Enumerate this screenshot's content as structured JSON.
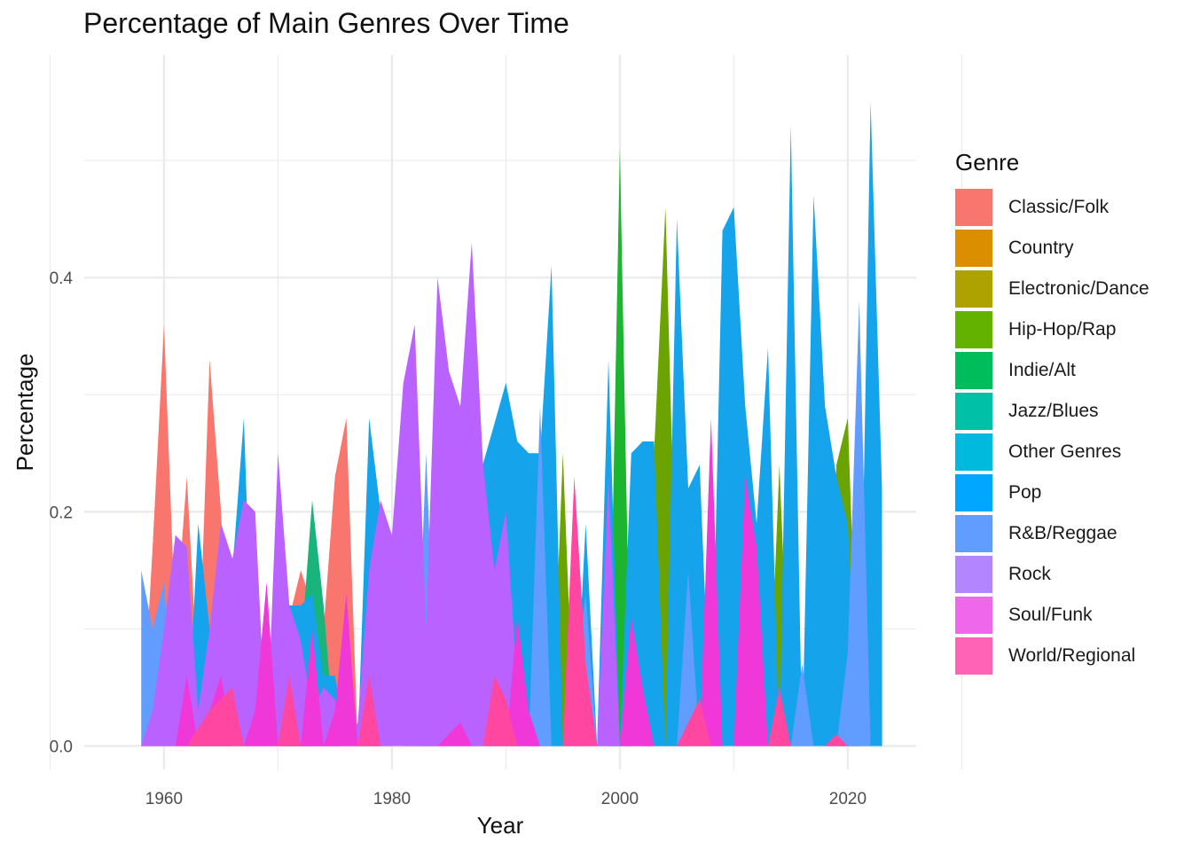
{
  "chart_data": {
    "type": "area",
    "title": "Percentage of Main Genres Over Time",
    "xlabel": "Year",
    "ylabel": "Percentage",
    "xlim": [
      1953,
      2026
    ],
    "ylim": [
      -0.02,
      0.59
    ],
    "xticks": [
      1960,
      1980,
      2000,
      2020
    ],
    "xtick_labels": [
      "1960",
      "1980",
      "2000",
      "2020"
    ],
    "yticks": [
      0.0,
      0.2,
      0.4
    ],
    "ytick_labels": [
      "0.0",
      "0.2",
      "0.4"
    ],
    "grid": true,
    "legend_title": "Genre",
    "legend_position": "right",
    "series": [
      {
        "name": "Classic/Folk",
        "color": "#F8766D",
        "x": [
          1958,
          1959,
          1960,
          1961,
          1962,
          1963,
          1964,
          1965,
          1966,
          1970,
          1971,
          1972,
          1973,
          1974,
          1975,
          1976,
          1977
        ],
        "y": [
          0.0,
          0.17,
          0.36,
          0.1,
          0.23,
          0.05,
          0.33,
          0.2,
          0.0,
          0.0,
          0.11,
          0.15,
          0.12,
          0.1,
          0.23,
          0.28,
          0.0
        ]
      },
      {
        "name": "Jazz/Blues",
        "color": "#18B47C",
        "x": [
          1971,
          1972,
          1973,
          1974,
          1975
        ],
        "y": [
          0.0,
          0.08,
          0.21,
          0.12,
          0.0
        ]
      },
      {
        "name": "Hip-Hop/Rap",
        "color": "#6BA300",
        "x": [
          1994,
          1995,
          1996,
          2002,
          2003,
          2004,
          2005,
          2006,
          2013,
          2014,
          2015,
          2018,
          2019,
          2020,
          2021
        ],
        "y": [
          0.0,
          0.25,
          0.0,
          0.0,
          0.25,
          0.46,
          0.1,
          0.0,
          0.0,
          0.24,
          0.0,
          0.0,
          0.24,
          0.28,
          0.0
        ]
      },
      {
        "name": "Indie/Alt",
        "color": "#1DB42F",
        "x": [
          1999,
          2000,
          2001
        ],
        "y": [
          0.0,
          0.51,
          0.0
        ]
      },
      {
        "name": "Pop",
        "color": "#15A3EB",
        "x": [
          1958,
          1960,
          1961,
          1962,
          1963,
          1964,
          1965,
          1966,
          1967,
          1968,
          1971,
          1972,
          1973,
          1974,
          1975,
          1976,
          1977,
          1978,
          1979,
          1980,
          1981,
          1990,
          1991,
          1992,
          1993,
          1994,
          1995,
          1996,
          1997,
          1998,
          1999,
          2000,
          2001,
          2002,
          2003,
          2004,
          2005,
          2006,
          2007,
          2008,
          2009,
          2010,
          2011,
          2012,
          2013,
          2014,
          2015,
          2016,
          2017,
          2018,
          2019,
          2020,
          2021,
          2022,
          2023,
          2023.01
        ],
        "y": [
          0.0,
          0.0,
          0.0,
          0.0,
          0.19,
          0.1,
          0.15,
          0.15,
          0.28,
          0.0,
          0.12,
          0.12,
          0.13,
          0.06,
          0.06,
          0.0,
          0.0,
          0.28,
          0.2,
          0.0,
          0.0,
          0.31,
          0.26,
          0.25,
          0.25,
          0.41,
          0.0,
          0.0,
          0.19,
          0.0,
          0.33,
          0.0,
          0.25,
          0.26,
          0.26,
          0.0,
          0.45,
          0.22,
          0.24,
          0.0,
          0.44,
          0.46,
          0.29,
          0.19,
          0.34,
          0.0,
          0.53,
          0.0,
          0.47,
          0.29,
          0.23,
          0.19,
          0.0,
          0.55,
          0.22,
          0.0
        ]
      },
      {
        "name": "R&B/Reggae",
        "color": "#619CFF",
        "x": [
          1958,
          1959,
          1960,
          1961,
          1982,
          1983,
          1984,
          1992,
          1993,
          1994,
          1995,
          1996,
          1997,
          1998,
          2005,
          2006,
          2007,
          2015,
          2016,
          2017,
          2018,
          2019,
          2020,
          2021,
          2022
        ],
        "y": [
          0.15,
          0.1,
          0.14,
          0.0,
          0.0,
          0.25,
          0.0,
          0.0,
          0.29,
          0.0,
          0.0,
          0.05,
          0.13,
          0.0,
          0.0,
          0.15,
          0.0,
          0.0,
          0.07,
          0.0,
          0.0,
          0.0,
          0.08,
          0.38,
          0.0
        ]
      },
      {
        "name": "Rock",
        "color": "#B962FF",
        "x": [
          1958,
          1959,
          1960,
          1961,
          1962,
          1963,
          1964,
          1965,
          1966,
          1967,
          1968,
          1969,
          1970,
          1971,
          1972,
          1973,
          1974,
          1975,
          1976,
          1977,
          1978,
          1979,
          1980,
          1981,
          1982,
          1983,
          1984,
          1985,
          1986,
          1987,
          1988,
          1989,
          1990,
          1991,
          1992,
          1993,
          1998,
          1999,
          2000,
          2008,
          2009
        ],
        "y": [
          0.0,
          0.03,
          0.1,
          0.18,
          0.17,
          0.03,
          0.1,
          0.19,
          0.16,
          0.21,
          0.2,
          0.0,
          0.25,
          0.12,
          0.09,
          0.03,
          0.05,
          0.04,
          0.0,
          0.02,
          0.15,
          0.21,
          0.18,
          0.31,
          0.36,
          0.1,
          0.4,
          0.32,
          0.29,
          0.43,
          0.24,
          0.15,
          0.2,
          0.05,
          0.03,
          0.0,
          0.0,
          0.23,
          0.0,
          0.0,
          0.0
        ]
      },
      {
        "name": "Soul/Funk",
        "color": "#F037D8",
        "x": [
          1961,
          1962,
          1963,
          1964,
          1965,
          1966,
          1967,
          1968,
          1969,
          1970,
          1971,
          1972,
          1973,
          1974,
          1975,
          1976,
          1977,
          1978,
          1979,
          1980,
          1984,
          1985,
          1986,
          1987,
          1990,
          1991,
          1992,
          1993,
          2000,
          2001,
          2002,
          2003,
          2004,
          2007,
          2008,
          2009,
          2010,
          2011,
          2012,
          2013
        ],
        "y": [
          0.0,
          0.06,
          0.0,
          0.03,
          0.06,
          0.0,
          0.0,
          0.03,
          0.14,
          0.0,
          0.06,
          0.0,
          0.1,
          0.0,
          0.03,
          0.13,
          0.0,
          0.06,
          0.0,
          0.0,
          0.0,
          0.01,
          0.02,
          0.0,
          0.0,
          0.11,
          0.03,
          0.0,
          0.0,
          0.11,
          0.05,
          0.0,
          0.0,
          0.0,
          0.28,
          0.0,
          0.0,
          0.23,
          0.17,
          0.0
        ]
      },
      {
        "name": "World/Regional",
        "color": "#FF46A0",
        "x": [
          1962,
          1964,
          1966,
          1967,
          1970,
          1971,
          1972,
          1977,
          1978,
          1979,
          1988,
          1989,
          1990,
          1991,
          1995,
          1996,
          1997,
          1998,
          2005,
          2006,
          2007,
          2008,
          2013,
          2014,
          2015,
          2018,
          2019,
          2020
        ],
        "y": [
          0.0,
          0.03,
          0.05,
          0.0,
          0.0,
          0.06,
          0.0,
          0.0,
          0.06,
          0.0,
          0.0,
          0.06,
          0.04,
          0.0,
          0.0,
          0.23,
          0.07,
          0.0,
          0.0,
          0.02,
          0.04,
          0.0,
          0.0,
          0.05,
          0.0,
          0.0,
          0.01,
          0.0
        ]
      },
      {
        "name": "Classic/Folk",
        "legend_only": true,
        "color": "#F8766D"
      }
    ],
    "legend": [
      {
        "label": "Classic/Folk",
        "color": "#F8766D"
      },
      {
        "label": "Country",
        "color": "#DB8E00"
      },
      {
        "label": "Electronic/Dance",
        "color": "#AEA200"
      },
      {
        "label": "Hip-Hop/Rap",
        "color": "#64B200"
      },
      {
        "label": "Indie/Alt",
        "color": "#00BD5C"
      },
      {
        "label": "Jazz/Blues",
        "color": "#00C1A7"
      },
      {
        "label": "Other Genres",
        "color": "#00BADE"
      },
      {
        "label": "Pop",
        "color": "#00A6FF"
      },
      {
        "label": "R&B/Reggae",
        "color": "#619CFF"
      },
      {
        "label": "Rock",
        "color": "#B385FF"
      },
      {
        "label": "Soul/Funk",
        "color": "#EF67EB"
      },
      {
        "label": "World/Regional",
        "color": "#FF63B6"
      }
    ]
  }
}
